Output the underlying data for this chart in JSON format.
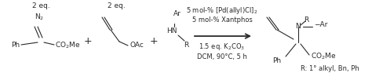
{
  "bg_color": "#ffffff",
  "fig_width": 4.74,
  "fig_height": 0.93,
  "dpi": 100,
  "text_color": "#2a2a2a",
  "eq1": "2 eq.",
  "eq2": "2 eq.",
  "cond1": "5 mol-% [Pd(allyl)Cl]$_2$",
  "cond2": "5 mol-% Xantphos",
  "cond3": "1.5 eq. K$_2$CO$_3$",
  "cond4": "DCM, 90°C, 5 h",
  "r_label": "R: 1° alkyl, Bn, Ph",
  "plus": "+",
  "N2": "N$_2$",
  "Ph": "Ph",
  "CO2Me": "CO$_2$Me",
  "OAc": "OAc",
  "Ar": "Ar",
  "HN": "HN",
  "R": "R",
  "N": "N",
  "NAr": "−Ar"
}
